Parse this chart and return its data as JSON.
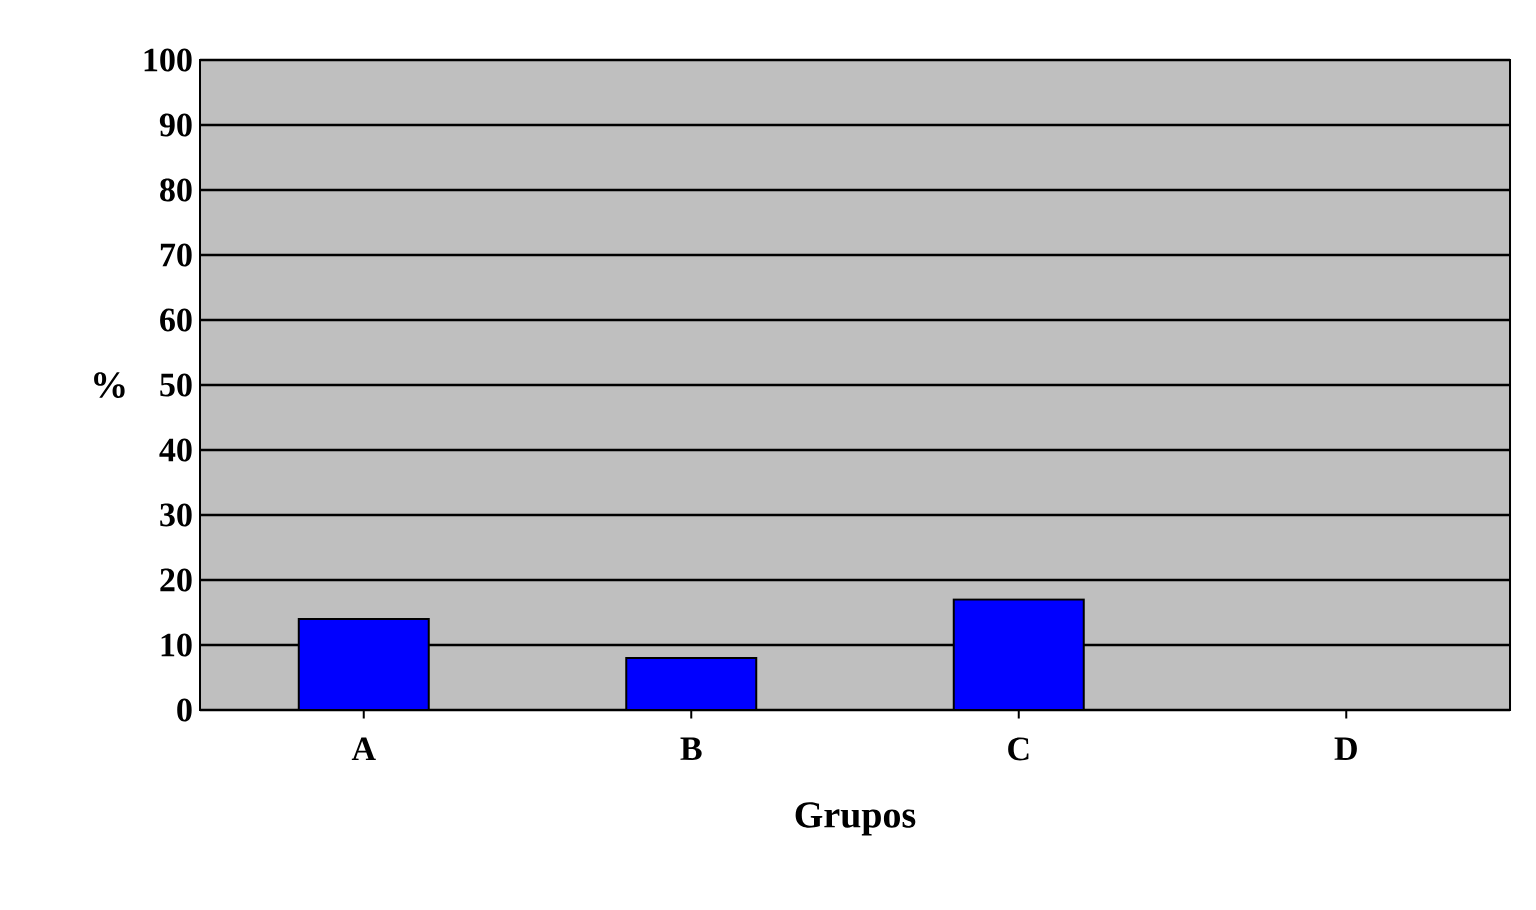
{
  "chart_data": {
    "type": "bar",
    "xlabel": "Grupos",
    "ylabel": "%",
    "categories": [
      "A",
      "B",
      "C",
      "D"
    ],
    "values": [
      14,
      8,
      17,
      0
    ],
    "color": "#0000ff",
    "ylim": [
      0,
      100
    ],
    "yticks": [
      0,
      10,
      20,
      30,
      40,
      50,
      60,
      70,
      80,
      90,
      100
    ],
    "grid": "y"
  }
}
